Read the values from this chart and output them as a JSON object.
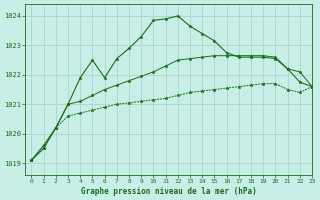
{
  "title": "Graphe pression niveau de la mer (hPa)",
  "bg_color": "#c8eee8",
  "grid_color": "#b0d8cc",
  "line_color": "#1a6e1a",
  "xlim": [
    -0.5,
    23
  ],
  "ylim": [
    1018.6,
    1024.4
  ],
  "yticks": [
    1019,
    1020,
    1021,
    1022,
    1023,
    1024
  ],
  "xticks": [
    0,
    1,
    2,
    3,
    4,
    5,
    6,
    7,
    8,
    9,
    10,
    11,
    12,
    13,
    14,
    15,
    16,
    17,
    18,
    19,
    20,
    21,
    22,
    23
  ],
  "series1_x": [
    0,
    1,
    2,
    3,
    4,
    5,
    6,
    7,
    8,
    9,
    10,
    11,
    12,
    13,
    14,
    15,
    16,
    17,
    18,
    19,
    20,
    21,
    22,
    23
  ],
  "series1_y": [
    1019.1,
    1019.5,
    1020.2,
    1020.6,
    1020.7,
    1020.8,
    1020.9,
    1021.0,
    1021.05,
    1021.1,
    1021.15,
    1021.2,
    1021.3,
    1021.4,
    1021.45,
    1021.5,
    1021.55,
    1021.6,
    1021.65,
    1021.7,
    1021.7,
    1021.5,
    1021.4,
    1021.6
  ],
  "series2_x": [
    0,
    1,
    2,
    3,
    4,
    5,
    6,
    7,
    8,
    9,
    10,
    11,
    12,
    13,
    14,
    15,
    16,
    17,
    18,
    19,
    20,
    21,
    22,
    23
  ],
  "series2_y": [
    1019.1,
    1019.5,
    1020.2,
    1021.0,
    1021.1,
    1021.3,
    1021.5,
    1021.65,
    1021.8,
    1021.95,
    1022.1,
    1022.3,
    1022.5,
    1022.55,
    1022.6,
    1022.65,
    1022.65,
    1022.65,
    1022.65,
    1022.65,
    1022.6,
    1022.2,
    1022.1,
    1021.6
  ],
  "series3_x": [
    0,
    1,
    2,
    3,
    4,
    5,
    6,
    7,
    8,
    9,
    10,
    11,
    12,
    13,
    14,
    15,
    16,
    17,
    18,
    19,
    20,
    21,
    22,
    23
  ],
  "series3_y": [
    1019.1,
    1019.6,
    1020.2,
    1021.0,
    1021.9,
    1022.5,
    1021.9,
    1022.55,
    1022.9,
    1023.3,
    1023.85,
    1023.9,
    1024.0,
    1023.65,
    1023.4,
    1023.15,
    1022.75,
    1022.6,
    1022.6,
    1022.6,
    1022.55,
    1022.2,
    1021.75,
    1021.6
  ]
}
